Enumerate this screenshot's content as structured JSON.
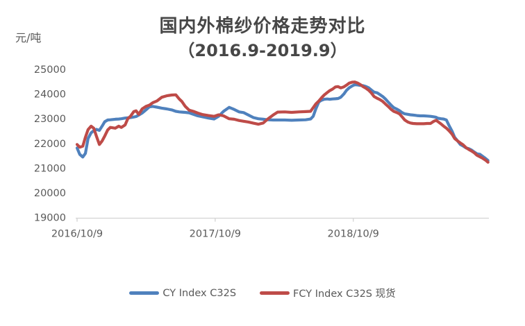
{
  "chart": {
    "title": "国内外棉纱价格走势对比",
    "subtitle": "（2016.9-2019.9）",
    "unit_label": "元/吨"
  },
  "legend": {
    "items": [
      {
        "label": "CY Index C32S",
        "color": "#4F81BD"
      },
      {
        "label": "FCY Index C32S 现货",
        "color": "#BE4B48"
      }
    ]
  },
  "chart_data": {
    "type": "line",
    "title": "国内外棉纱价格走势对比",
    "subtitle": "（2016.9-2019.9）",
    "ylabel": "元/吨",
    "ylim": [
      19000,
      25000
    ],
    "grid": false,
    "legend_position": "bottom",
    "y_ticks": [
      25000,
      24000,
      23000,
      22000,
      21000,
      20000,
      19000
    ],
    "x_ticks": [
      {
        "label": "2016/10/9",
        "date": "2016-10-09"
      },
      {
        "label": "2017/10/9",
        "date": "2017-10-09"
      },
      {
        "label": "2018/10/9",
        "date": "2018-10-09"
      }
    ],
    "dates": [
      "2016-10-09",
      "2016-10-16",
      "2016-10-24",
      "2016-10-31",
      "2016-11-07",
      "2016-11-15",
      "2016-11-22",
      "2016-11-29",
      "2016-12-07",
      "2016-12-14",
      "2016-12-21",
      "2016-12-29",
      "2017-01-05",
      "2017-01-18",
      "2017-01-27",
      "2017-02-03",
      "2017-02-13",
      "2017-02-20",
      "2017-02-27",
      "2017-03-08",
      "2017-03-14",
      "2017-03-21",
      "2017-03-30",
      "2017-04-09",
      "2017-04-18",
      "2017-04-27",
      "2017-05-08",
      "2017-05-21",
      "2017-06-03",
      "2017-06-16",
      "2017-06-27",
      "2017-07-06",
      "2017-07-13",
      "2017-07-22",
      "2017-08-01",
      "2017-08-12",
      "2017-08-24",
      "2017-09-06",
      "2017-09-21",
      "2017-10-06",
      "2017-10-18",
      "2017-10-31",
      "2017-11-15",
      "2017-11-28",
      "2017-12-11",
      "2017-12-23",
      "2018-01-05",
      "2018-01-18",
      "2018-01-31",
      "2018-02-13",
      "2018-02-26",
      "2018-03-11",
      "2018-03-23",
      "2018-04-11",
      "2018-04-29",
      "2018-05-18",
      "2018-06-05",
      "2018-06-18",
      "2018-06-25",
      "2018-07-02",
      "2018-07-10",
      "2018-07-17",
      "2018-07-24",
      "2018-08-01",
      "2018-08-08",
      "2018-08-15",
      "2018-08-23",
      "2018-08-30",
      "2018-09-06",
      "2018-09-14",
      "2018-09-21",
      "2018-09-28",
      "2018-10-06",
      "2018-10-13",
      "2018-10-20",
      "2018-10-28",
      "2018-11-04",
      "2018-11-11",
      "2018-11-19",
      "2018-11-26",
      "2018-12-03",
      "2018-12-11",
      "2018-12-18",
      "2018-12-26",
      "2019-01-02",
      "2019-01-09",
      "2019-01-17",
      "2019-01-24",
      "2019-01-31",
      "2019-02-08",
      "2019-02-15",
      "2019-02-22",
      "2019-03-02",
      "2019-03-09",
      "2019-03-16",
      "2019-03-26",
      "2019-04-04",
      "2019-04-13",
      "2019-04-22",
      "2019-05-01",
      "2019-05-10",
      "2019-05-16",
      "2019-05-21",
      "2019-05-29",
      "2019-06-05",
      "2019-06-12",
      "2019-06-20",
      "2019-06-27",
      "2019-07-04",
      "2019-07-12",
      "2019-07-19",
      "2019-07-26",
      "2019-08-03",
      "2019-08-10",
      "2019-08-17",
      "2019-08-25",
      "2019-09-01",
      "2019-09-09",
      "2019-09-16",
      "2019-09-23",
      "2019-09-30"
    ],
    "series": [
      {
        "id": "cy-index-line",
        "name": "CY Index C32S",
        "color": "#4F81BD",
        "values": [
          21820,
          21560,
          21450,
          21600,
          22200,
          22430,
          22520,
          22570,
          22530,
          22700,
          22880,
          22950,
          22960,
          22980,
          22990,
          23000,
          23030,
          23040,
          23050,
          23070,
          23090,
          23150,
          23230,
          23360,
          23480,
          23500,
          23470,
          23430,
          23400,
          23360,
          23300,
          23280,
          23270,
          23260,
          23240,
          23180,
          23120,
          23080,
          23030,
          22990,
          23100,
          23300,
          23460,
          23380,
          23280,
          23250,
          23150,
          23050,
          23000,
          22980,
          22960,
          22950,
          22950,
          22950,
          22940,
          22950,
          22960,
          22990,
          23100,
          23400,
          23680,
          23750,
          23790,
          23800,
          23790,
          23800,
          23810,
          23820,
          23870,
          24000,
          24150,
          24250,
          24330,
          24380,
          24370,
          24350,
          24340,
          24310,
          24250,
          24160,
          24080,
          24050,
          23980,
          23900,
          23800,
          23680,
          23550,
          23450,
          23400,
          23330,
          23250,
          23200,
          23180,
          23160,
          23150,
          23130,
          23120,
          23120,
          23110,
          23100,
          23080,
          23060,
          23020,
          23000,
          22990,
          22950,
          22700,
          22500,
          22250,
          22100,
          21960,
          21900,
          21820,
          21790,
          21740,
          21650,
          21580,
          21560,
          21480,
          21400,
          21310
        ]
      },
      {
        "id": "fcy-index-line",
        "name": "FCY Index C32S 现货",
        "color": "#BE4B48",
        "values": [
          21960,
          21850,
          21890,
          22250,
          22560,
          22700,
          22620,
          22300,
          21960,
          22100,
          22300,
          22550,
          22650,
          22620,
          22700,
          22650,
          22750,
          23000,
          23100,
          23290,
          23320,
          23180,
          23400,
          23500,
          23550,
          23650,
          23720,
          23870,
          23930,
          23960,
          23970,
          23800,
          23700,
          23500,
          23350,
          23300,
          23230,
          23170,
          23130,
          23100,
          23160,
          23120,
          23000,
          22980,
          22930,
          22900,
          22870,
          22820,
          22780,
          22830,
          23000,
          23150,
          23270,
          23280,
          23260,
          23280,
          23290,
          23300,
          23450,
          23600,
          23720,
          23850,
          23960,
          24060,
          24140,
          24200,
          24290,
          24300,
          24250,
          24290,
          24360,
          24440,
          24480,
          24490,
          24450,
          24380,
          24300,
          24240,
          24150,
          24040,
          23900,
          23830,
          23780,
          23700,
          23600,
          23500,
          23380,
          23300,
          23260,
          23200,
          23080,
          22950,
          22870,
          22830,
          22810,
          22800,
          22800,
          22800,
          22810,
          22810,
          22900,
          22940,
          22880,
          22790,
          22700,
          22620,
          22500,
          22380,
          22200,
          22100,
          22020,
          21950,
          21830,
          21760,
          21700,
          21620,
          21520,
          21460,
          21400,
          21330,
          21240
        ]
      }
    ]
  }
}
